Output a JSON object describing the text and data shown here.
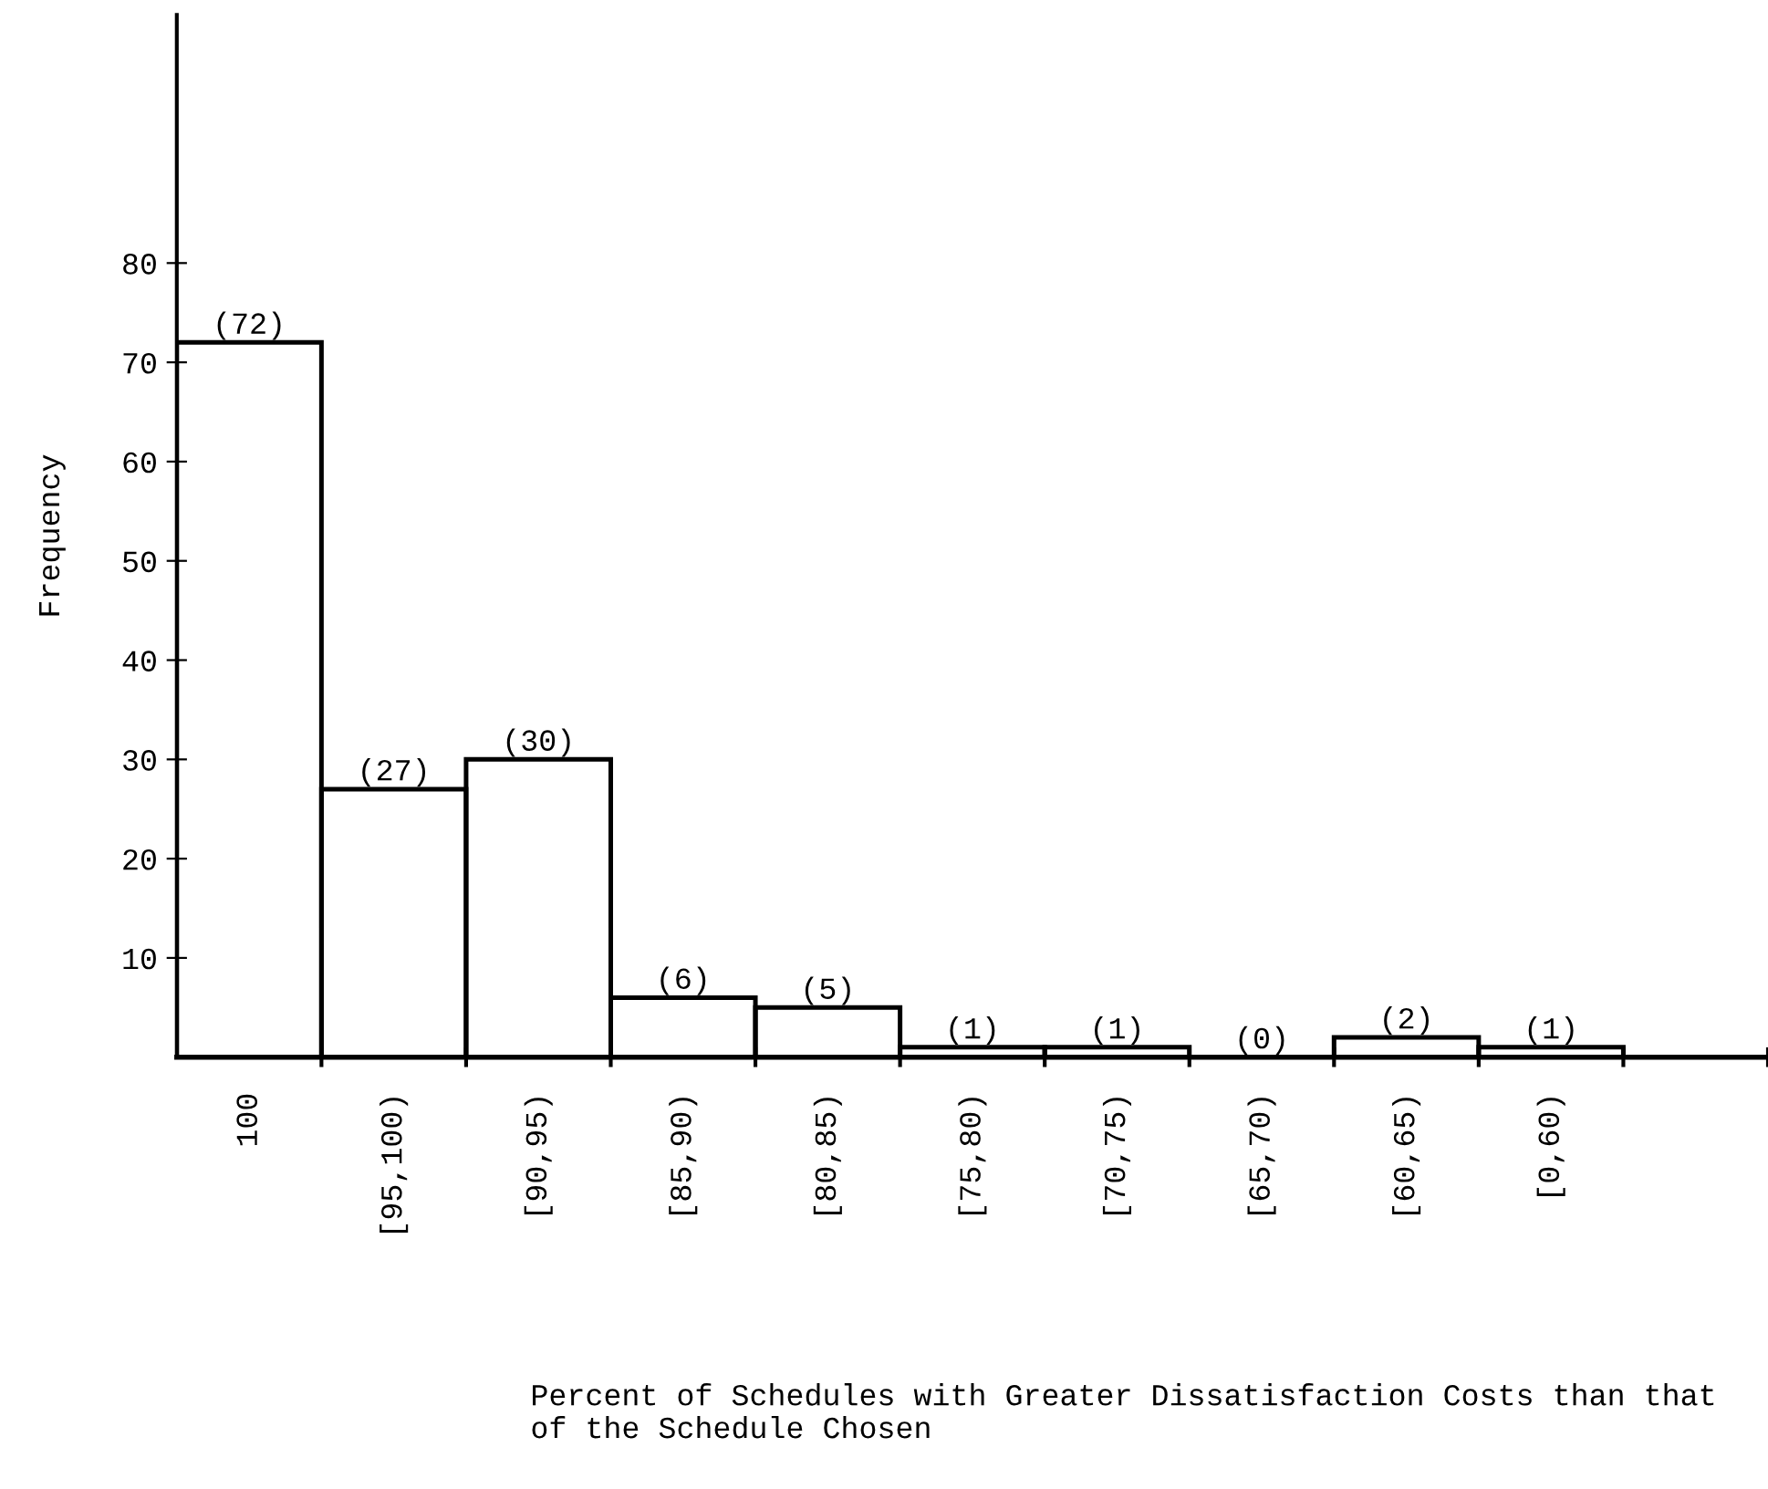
{
  "chart_data": {
    "type": "bar",
    "xlabel": "Percent of Schedules with Greater Dissatisfaction Costs than that\nof the Schedule Chosen",
    "ylabel": "Frequency",
    "categories": [
      "100",
      "[95,100)",
      "[90,95)",
      "[85,90)",
      "[80,85)",
      "[75,80)",
      "[70,75)",
      "[65,70)",
      "[60,65)",
      "[0,60)"
    ],
    "values": [
      72,
      27,
      30,
      6,
      5,
      1,
      1,
      0,
      2,
      1
    ],
    "value_labels": [
      "(72)",
      "(27)",
      "(30)",
      "(6)",
      "(5)",
      "(1)",
      "(1)",
      "(0)",
      "(2)",
      "(1)"
    ],
    "color": "#000000",
    "ylim": [
      0,
      105
    ],
    "yticks": [
      10,
      20,
      30,
      40,
      50,
      60,
      70,
      80
    ],
    "grid": false,
    "legend": false
  }
}
